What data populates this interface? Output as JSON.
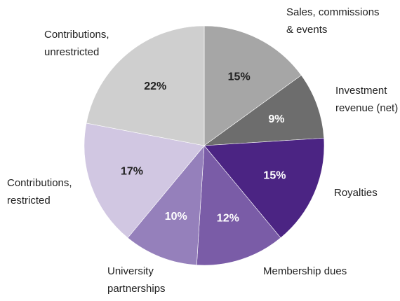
{
  "chart_data": {
    "type": "pie",
    "categories": [
      "Sales, commissions\n& events",
      "Investment\nrevenue (net)",
      "Royalties",
      "Membership dues",
      "University\npartnerships",
      "Contributions,\nrestricted",
      "Contributions,\nunrestricted"
    ],
    "values": [
      15,
      9,
      15,
      12,
      10,
      17,
      22
    ],
    "value_labels": [
      "15%",
      "9%",
      "15%",
      "12%",
      "10%",
      "17%",
      "22%"
    ],
    "colors": [
      "#a6a6a6",
      "#6d6d6d",
      "#4b2483",
      "#7a5ca7",
      "#9580bb",
      "#d1c7e2",
      "#cfcfcf"
    ]
  }
}
